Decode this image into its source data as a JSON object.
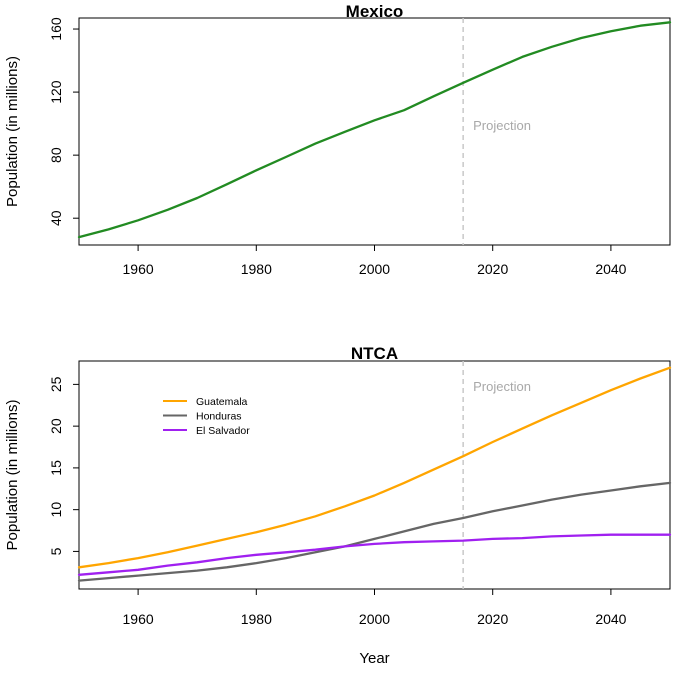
{
  "chart_data": [
    {
      "type": "line",
      "title": "Mexico",
      "xlabel": "",
      "ylabel": "Population (in millions)",
      "xlim": [
        1950,
        2050
      ],
      "ylim": [
        23,
        167
      ],
      "xticks": [
        1960,
        1980,
        2000,
        2020,
        2040
      ],
      "yticks": [
        40,
        80,
        120,
        160
      ],
      "projection": {
        "year": 2015,
        "label": "Projection"
      },
      "legend": null,
      "series": [
        {
          "color": "#228B22",
          "x": [
            1950,
            1955,
            1960,
            1965,
            1970,
            1975,
            1980,
            1985,
            1990,
            1995,
            2000,
            2005,
            2010,
            2015,
            2020,
            2025,
            2030,
            2035,
            2040,
            2045,
            2050
          ],
          "y": [
            28.0,
            32.9,
            38.7,
            45.3,
            52.8,
            61.5,
            70.4,
            78.8,
            87.3,
            94.8,
            102.1,
            108.5,
            117.3,
            125.9,
            134.2,
            142.3,
            148.7,
            154.3,
            158.6,
            162.1,
            164.3
          ]
        }
      ]
    },
    {
      "type": "line",
      "title": "NTCA",
      "xlabel": "Year",
      "ylabel": "Population (in millions)",
      "xlim": [
        1950,
        2050
      ],
      "ylim": [
        0.5,
        27.8
      ],
      "xticks": [
        1960,
        1980,
        2000,
        2020,
        2040
      ],
      "yticks": [
        5,
        10,
        15,
        20,
        25
      ],
      "projection": {
        "year": 2015,
        "label": "Projection"
      },
      "legend": "top-left",
      "series": [
        {
          "name": "Guatemala",
          "color": "#FFA500",
          "x": [
            1950,
            1955,
            1960,
            1965,
            1970,
            1975,
            1980,
            1985,
            1990,
            1995,
            2000,
            2005,
            2010,
            2015,
            2020,
            2025,
            2030,
            2035,
            2040,
            2045,
            2050
          ],
          "y": [
            3.1,
            3.6,
            4.2,
            4.9,
            5.7,
            6.5,
            7.3,
            8.2,
            9.2,
            10.4,
            11.7,
            13.2,
            14.8,
            16.4,
            18.1,
            19.7,
            21.3,
            22.8,
            24.3,
            25.7,
            27.0
          ]
        },
        {
          "name": "Honduras",
          "color": "#666666",
          "x": [
            1950,
            1955,
            1960,
            1965,
            1970,
            1975,
            1980,
            1985,
            1990,
            1995,
            2000,
            2005,
            2010,
            2015,
            2020,
            2025,
            2030,
            2035,
            2040,
            2045,
            2050
          ],
          "y": [
            1.5,
            1.8,
            2.1,
            2.4,
            2.7,
            3.1,
            3.6,
            4.2,
            4.9,
            5.6,
            6.5,
            7.4,
            8.3,
            9.0,
            9.8,
            10.5,
            11.2,
            11.8,
            12.3,
            12.8,
            13.2
          ]
        },
        {
          "name": "El Salvador",
          "color": "#A020F0",
          "x": [
            1950,
            1955,
            1960,
            1965,
            1970,
            1975,
            1980,
            1985,
            1990,
            1995,
            2000,
            2005,
            2010,
            2015,
            2020,
            2025,
            2030,
            2035,
            2040,
            2045,
            2050
          ],
          "y": [
            2.2,
            2.5,
            2.8,
            3.3,
            3.7,
            4.2,
            4.6,
            4.9,
            5.2,
            5.6,
            5.9,
            6.1,
            6.2,
            6.3,
            6.5,
            6.6,
            6.8,
            6.9,
            7.0,
            7.0,
            7.0
          ]
        }
      ]
    }
  ]
}
